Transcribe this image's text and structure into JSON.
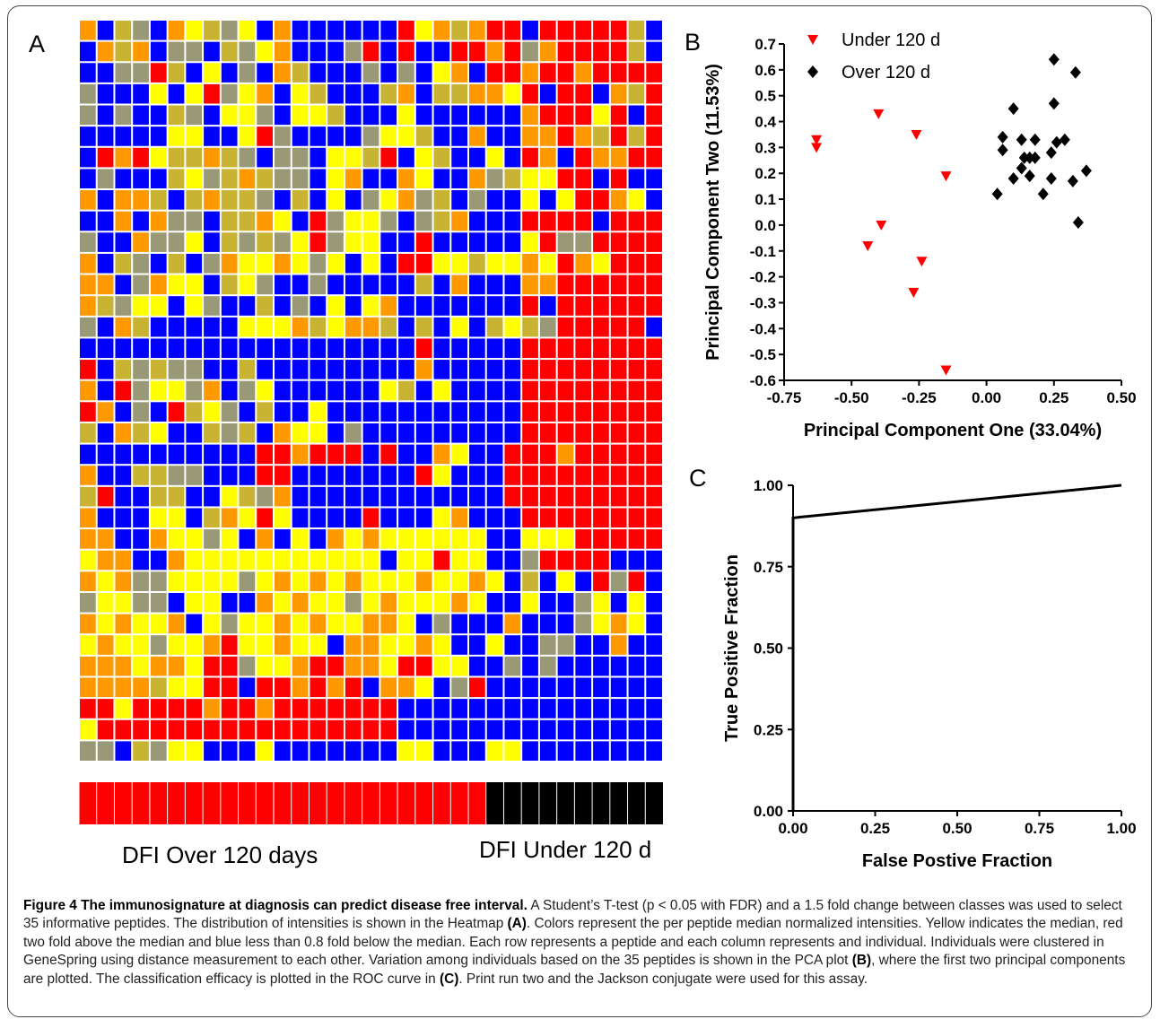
{
  "figure": {
    "panel_a_letter": "A",
    "panel_b_letter": "B",
    "panel_c_letter": "C",
    "group_label_left": "DFI Over 120 days",
    "group_label_right": "DFI Under 120 d"
  },
  "caption": {
    "title": "Figure 4 The immunosignature at diagnosis can predict disease free interval.",
    "part1": " A Student’s T-test (p < 0.05 with FDR) and a 1.5 fold change between classes was used to select 35 informative peptides. The distribution of intensities is shown in the Heatmap ",
    "ref_a": "(A)",
    "part2": ". Colors represent the per peptide median normalized intensities. Yellow indicates the median, red two fold above the median and blue less than 0.8 fold below the median. Each row represents a peptide and each column represents and individual. Individuals were clustered in GeneSpring using distance measurement to each other. Variation among individuals based on the 35 peptides is shown in the PCA plot ",
    "ref_b": "(B)",
    "part3": ", where the first two principal components are plotted. The classification efficacy is plotted in the ROC curve in ",
    "ref_c": "(C)",
    "part4": ". Print run two and the Jackson conjugate were used for this assay."
  },
  "colors": {
    "blue": "#0000ff",
    "red": "#ff0000",
    "yellow": "#ffff00",
    "orange": "#ff9900",
    "olive": "#c8b432",
    "gray": "#999977",
    "black": "#000000"
  },
  "chart_data": [
    {
      "type": "heatmap",
      "rows": 35,
      "columns": 33,
      "class_bar": {
        "over_120_columns": 23,
        "under_120_columns": 10
      },
      "color_codes": {
        "B": "blue",
        "R": "red",
        "Y": "yellow",
        "O": "orange",
        "L": "olive",
        "G": "gray"
      },
      "cells": [
        "OBLGBOYLGYBOBBBBBBRYOLORRBRRRRRLB",
        "BOLOBGGBLGYOBBBGRBRBBRRORGORRRRLB",
        "BBGGRLBYBGBOLBBBGBGBYOBRRORRORRRR",
        "GBBBYBYRGYOBYLBBBLOBLLOOYRBRRBOLR",
        "GBGBBLGBYYGBYYLBBBYBBBBBBORRRYRBR",
        "BBBBBYYBBYRGBBBBGYYLBBOBBOOROLRLR",
        "BRORYLLOLGBGGBYYLRBYLBBYBROBROORR",
        "BGBBBLYGLOLGGBYOBBOYBBOGLYYRRBRBB",
        "OBOOLBLOLLGBLBYBGYOGLBGBBYBYRROYB",
        "BBOBOGGBLLOYBRGYYGBGLOBBBRRRRBRRR",
        "GBBOGGYBLGLGYRGYYBBRBBBBBYRGGRRRR",
        "OBLGBLBGOYYOYGYBYBRRYYLYYOYROYRRR",
        "OOBGOYYBLYGBBGBBBBBLBOBBBOORRRRRR",
        "OLGYYBYGBBLBGBYBYOBBBBBBBRBRRRRRR",
        "GBOLBBBBBYYYOLYOOLBLBYBLYLGRRRRRB",
        "BBBBBBBBBBBBBBBBBBBRBBBBBRRRRRRRR",
        "RBLGLGGBBLBBBBBBBBBOBBBBBRRRRRRRR",
        "OBRGYYGOBGYBBBBBBYLBYBBBBRRRRRRRR",
        "ROBGBRLYGBLBBYBBBBBBBBBBBRRRRRRRR",
        "LBOLYBBLGLBOYYBGBBBBBBBBBRRRRRRRR",
        "BBBBBBBBBBRRORRRBRBBOYBBRRRORRRRR",
        "OBBLLGGBBBRRBBBBBBBRYBBBRRRRRRRRR",
        "LRBBLLBBYLGOBBBBBBBBBBBBRRRRRRRRR",
        "OBBBYYBLOYRYBBBBRBBBYOBBBRRRRRRRR",
        "OOBBOYYGYBOBYBOYOYYYYYYBBYYYRRRRR",
        "YOOBBOYYYYYYYYYYYBYYRYYBBGRRRRBBB",
        "OYOGGYYYYGYOYOYOYYYOYYOYBLBYBRGRB",
        "GYYGGBYYBBOYOYYGYOYYYOYBBYBBGYBYB",
        "OYOYYOBYGYYOYOYYOOYBGBBBOBBBGYOYB",
        "YOYYGYYORYYOYYBOOYYOYBBYBBGGBBOBB",
        "OOOYOOYRRGYYORROOYRRYYBBGBGBBBBBB",
        "OOOOLYYRRBRRORORBOOYBGRBBBBBBBBBB",
        "RRYRRRRORRORRRRRRRBBBBBBBBBBBBBBB",
        "YRRRRRRRRRRRRRRRRRBBBBBBBBBBBBBBB",
        "GGBLGYYBBBYBBBBBBBYYBBBYYBBBBBBBB"
      ]
    },
    {
      "type": "scatter",
      "xlabel": "Principal Component One (33.04%)",
      "ylabel": "Principal Component Two (11.53%)",
      "xlim": [
        -0.75,
        0.5
      ],
      "ylim": [
        -0.6,
        0.7
      ],
      "xticks": [
        "-0.75",
        "-0.50",
        "-0.25",
        "0.00",
        "0.25",
        "0.50"
      ],
      "yticks": [
        "0.7",
        "0.6",
        "0.5",
        "0.4",
        "0.3",
        "0.2",
        "0.1",
        "0.0",
        "-0.1",
        "-0.2",
        "-0.3",
        "-0.4",
        "-0.5",
        "-0.6"
      ],
      "legend_position": "top-left",
      "series": [
        {
          "name": "Under 120 d",
          "marker": "triangle-down",
          "color": "#ff0000",
          "points": [
            [
              -0.63,
              0.33
            ],
            [
              -0.63,
              0.3
            ],
            [
              -0.4,
              0.43
            ],
            [
              -0.26,
              0.35
            ],
            [
              -0.15,
              0.19
            ],
            [
              -0.39,
              0.0
            ],
            [
              -0.44,
              -0.08
            ],
            [
              -0.24,
              -0.14
            ],
            [
              -0.27,
              -0.26
            ],
            [
              -0.15,
              -0.56
            ]
          ]
        },
        {
          "name": "Over 120 d",
          "marker": "diamond",
          "color": "#000000",
          "points": [
            [
              0.25,
              0.64
            ],
            [
              0.33,
              0.59
            ],
            [
              0.25,
              0.47
            ],
            [
              0.1,
              0.45
            ],
            [
              0.06,
              0.34
            ],
            [
              0.13,
              0.33
            ],
            [
              0.18,
              0.33
            ],
            [
              0.26,
              0.32
            ],
            [
              0.29,
              0.33
            ],
            [
              0.06,
              0.29
            ],
            [
              0.24,
              0.28
            ],
            [
              0.14,
              0.26
            ],
            [
              0.18,
              0.26
            ],
            [
              0.16,
              0.26
            ],
            [
              0.13,
              0.22
            ],
            [
              0.16,
              0.19
            ],
            [
              0.1,
              0.18
            ],
            [
              0.24,
              0.18
            ],
            [
              0.32,
              0.17
            ],
            [
              0.37,
              0.21
            ],
            [
              0.04,
              0.12
            ],
            [
              0.21,
              0.12
            ],
            [
              0.34,
              0.01
            ]
          ]
        }
      ]
    },
    {
      "type": "line",
      "xlabel": "False Postive Fraction",
      "ylabel": "True Positive Fraction",
      "xlim": [
        0,
        1
      ],
      "ylim": [
        0,
        1
      ],
      "xticks": [
        "0.00",
        "0.25",
        "0.50",
        "0.75",
        "1.00"
      ],
      "yticks": [
        "1.00",
        "0.75",
        "0.50",
        "0.25",
        "0.00"
      ],
      "series": [
        {
          "points": [
            [
              0,
              0
            ],
            [
              0,
              0.9
            ],
            [
              1,
              1
            ]
          ]
        }
      ]
    }
  ]
}
